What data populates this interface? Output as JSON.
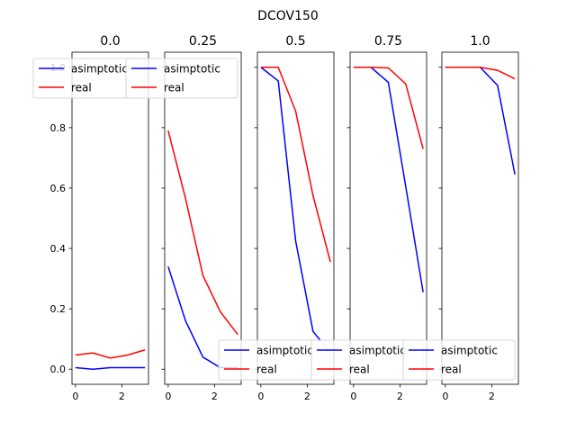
{
  "figure": {
    "title": "DCOV150"
  },
  "chart_data": {
    "type": "line",
    "shared_y": true,
    "ylim": [
      -0.05,
      1.05
    ],
    "yticks": [
      0.0,
      0.2,
      0.4,
      0.6,
      0.8,
      1.0
    ],
    "ytick_labels": [
      "0.0",
      "0.2",
      "0.4",
      "0.6",
      "0.8",
      "1.0"
    ],
    "xlim": [
      -0.15,
      3.15
    ],
    "xticks": [
      0,
      2
    ],
    "xtick_labels": [
      "0",
      "2"
    ],
    "x": [
      0,
      0.75,
      1.5,
      2.25,
      3.0
    ],
    "series_colors": {
      "asimptotic": "#0000ff",
      "real": "#ff0000"
    },
    "panels": [
      {
        "title": "0.0",
        "legend": "upper-left",
        "series": [
          {
            "name": "asimptotic",
            "values": [
              0.005,
              0.0,
              0.005,
              0.005,
              0.005
            ]
          },
          {
            "name": "real",
            "values": [
              0.047,
              0.054,
              0.037,
              0.047,
              0.064
            ]
          }
        ]
      },
      {
        "title": "0.25",
        "legend": "upper-left",
        "series": [
          {
            "name": "asimptotic",
            "values": [
              0.34,
              0.16,
              0.04,
              0.005,
              0.005
            ]
          },
          {
            "name": "real",
            "values": [
              0.79,
              0.565,
              0.31,
              0.19,
              0.115
            ]
          }
        ]
      },
      {
        "title": "0.5",
        "legend": "lower-left",
        "series": [
          {
            "name": "asimptotic",
            "values": [
              1.0,
              0.955,
              0.425,
              0.125,
              0.055
            ]
          },
          {
            "name": "real",
            "values": [
              1.0,
              1.0,
              0.855,
              0.575,
              0.355
            ]
          }
        ]
      },
      {
        "title": "0.75",
        "legend": "lower-left",
        "series": [
          {
            "name": "asimptotic",
            "values": [
              1.0,
              1.0,
              0.95,
              0.605,
              0.255
            ]
          },
          {
            "name": "real",
            "values": [
              1.0,
              1.0,
              0.998,
              0.945,
              0.73
            ]
          }
        ]
      },
      {
        "title": "1.0",
        "legend": "lower-left",
        "series": [
          {
            "name": "asimptotic",
            "values": [
              1.0,
              1.0,
              1.0,
              0.94,
              0.645
            ]
          },
          {
            "name": "real",
            "values": [
              1.0,
              1.0,
              1.0,
              0.99,
              0.962
            ]
          }
        ]
      }
    ]
  }
}
